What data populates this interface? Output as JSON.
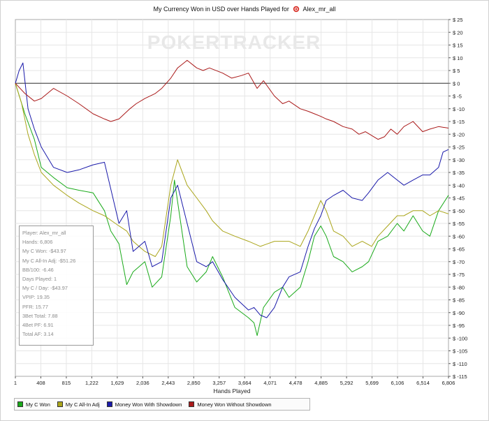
{
  "chart_data": {
    "type": "line",
    "title": "My Currency Won in USD over Hands Played for",
    "player_name": "Alex_mr_all",
    "watermark": "POKERTRACKER",
    "xlabel": "Hands Played",
    "ylabel": "",
    "xlim": [
      1,
      6806
    ],
    "ylim": [
      -115,
      25
    ],
    "x_ticks": [
      "1",
      "408",
      "815",
      "1,222",
      "1,629",
      "2,036",
      "2,443",
      "2,850",
      "3,257",
      "3,664",
      "4,071",
      "4,478",
      "4,885",
      "5,292",
      "5,699",
      "6,106",
      "6,514",
      "6,806"
    ],
    "y_ticks": [
      "$ 25",
      "$ 20",
      "$ 15",
      "$ 10",
      "$ 5",
      "$ 0",
      "$ -5",
      "$ -10",
      "$ -15",
      "$ -20",
      "$ -25",
      "$ -30",
      "$ -35",
      "$ -40",
      "$ -45",
      "$ -50",
      "$ -55",
      "$ -60",
      "$ -65",
      "$ -70",
      "$ -75",
      "$ -80",
      "$ -85",
      "$ -90",
      "$ -95",
      "$ -100",
      "$ -105",
      "$ -110",
      "$ -115"
    ],
    "grid": true,
    "legend_position": "bottom-left",
    "series": [
      {
        "name": "My C Won",
        "color": "#1aaa1a",
        "x": [
          1,
          150,
          300,
          408,
          600,
          815,
          1000,
          1222,
          1400,
          1500,
          1629,
          1750,
          1850,
          2036,
          2150,
          2300,
          2443,
          2500,
          2600,
          2700,
          2850,
          3000,
          3100,
          3257,
          3450,
          3664,
          3750,
          3800,
          3900,
          4071,
          4200,
          4300,
          4478,
          4600,
          4700,
          4800,
          4885,
          5000,
          5150,
          5292,
          5450,
          5550,
          5699,
          5850,
          6000,
          6106,
          6250,
          6400,
          6514,
          6650,
          6806
        ],
        "y": [
          0,
          -12,
          -22,
          -33,
          -37,
          -41,
          -42,
          -43,
          -50,
          -58,
          -63,
          -79,
          -74,
          -70,
          -80,
          -76,
          -52,
          -38,
          -55,
          -72,
          -78,
          -74,
          -68,
          -76,
          -88,
          -92,
          -94,
          -99,
          -88,
          -82,
          -80,
          -84,
          -80,
          -70,
          -60,
          -56,
          -60,
          -68,
          -70,
          -74,
          -72,
          -70,
          -62,
          -60,
          -55,
          -58,
          -52,
          -58,
          -60,
          -50,
          -43.97
        ]
      },
      {
        "name": "My C All-In Adj",
        "color": "#aaa51a",
        "x": [
          1,
          100,
          200,
          300,
          408,
          600,
          815,
          1000,
          1222,
          1400,
          1629,
          1750,
          1850,
          2036,
          2200,
          2300,
          2443,
          2550,
          2700,
          2850,
          3000,
          3100,
          3257,
          3450,
          3664,
          3850,
          4071,
          4300,
          4478,
          4600,
          4700,
          4800,
          4885,
          5000,
          5150,
          5292,
          5450,
          5600,
          5699,
          5850,
          6000,
          6106,
          6250,
          6400,
          6514,
          6650,
          6806
        ],
        "y": [
          0,
          -8,
          -20,
          -28,
          -35,
          -40,
          -44,
          -47,
          -50,
          -52,
          -56,
          -58,
          -62,
          -66,
          -68,
          -64,
          -40,
          -30,
          -40,
          -45,
          -50,
          -54,
          -58,
          -60,
          -62,
          -64,
          -62,
          -62,
          -64,
          -58,
          -52,
          -46,
          -50,
          -58,
          -60,
          -64,
          -62,
          -64,
          -60,
          -56,
          -52,
          -52,
          -50,
          -50,
          -52,
          -50,
          -51.26
        ]
      },
      {
        "name": "Money Won With Showdown",
        "color": "#1a1aaa",
        "x": [
          1,
          60,
          120,
          200,
          300,
          408,
          600,
          815,
          1000,
          1222,
          1400,
          1629,
          1750,
          1850,
          2036,
          2150,
          2300,
          2443,
          2550,
          2700,
          2850,
          3000,
          3100,
          3257,
          3450,
          3664,
          3750,
          3850,
          3950,
          4071,
          4200,
          4300,
          4478,
          4600,
          4700,
          4800,
          4885,
          5000,
          5150,
          5292,
          5450,
          5550,
          5699,
          5850,
          6000,
          6106,
          6250,
          6400,
          6514,
          6650,
          6720,
          6806
        ],
        "y": [
          0,
          5,
          8,
          -10,
          -18,
          -25,
          -33,
          -35,
          -34,
          -32,
          -31,
          -55,
          -50,
          -66,
          -62,
          -72,
          -70,
          -45,
          -40,
          -55,
          -70,
          -72,
          -70,
          -77,
          -84,
          -89,
          -88,
          -91,
          -92,
          -88,
          -80,
          -76,
          -74,
          -64,
          -57,
          -52,
          -46,
          -44,
          -42,
          -45,
          -46,
          -43,
          -38,
          -35,
          -38,
          -40,
          -38,
          -36,
          -36,
          -33,
          -27,
          -26
        ]
      },
      {
        "name": "Money Won Without Showdown",
        "color": "#aa1a1a",
        "x": [
          1,
          150,
          300,
          408,
          600,
          815,
          1000,
          1222,
          1400,
          1500,
          1629,
          1800,
          1900,
          2036,
          2200,
          2300,
          2443,
          2550,
          2650,
          2700,
          2850,
          2950,
          3050,
          3257,
          3400,
          3550,
          3664,
          3800,
          3900,
          4071,
          4200,
          4300,
          4478,
          4600,
          4700,
          4800,
          4885,
          5000,
          5150,
          5292,
          5400,
          5500,
          5699,
          5800,
          5900,
          6000,
          6106,
          6250,
          6400,
          6514,
          6650,
          6806
        ],
        "y": [
          0,
          -4,
          -7,
          -6,
          -2,
          -5,
          -8,
          -12,
          -14,
          -15,
          -14,
          -10,
          -8,
          -6,
          -4,
          -2,
          2,
          6,
          8,
          9,
          6,
          5,
          6,
          4,
          2,
          3,
          4,
          -2,
          1,
          -5,
          -8,
          -7,
          -10,
          -11,
          -12,
          -13,
          -14,
          -15,
          -17,
          -18,
          -20,
          -19,
          -22,
          -21,
          -18,
          -20,
          -17,
          -15,
          -19,
          -18,
          -17,
          -17.6
        ]
      }
    ]
  },
  "stats": [
    "Player: Alex_mr_all",
    "Hands: 6,806",
    "My C Won: -$43.97",
    "My C All-In Adj: -$51.26",
    "BB/100: -6.46",
    "Days Played: 1",
    "My C / Day: -$43.97",
    "VPIP: 19.35",
    "PFR: 15.77",
    "3Bet Total: 7.88",
    "4Bet PF: 6.91",
    "Total AF: 3.14"
  ],
  "legend": [
    {
      "label": "My C Won",
      "color": "#1aaa1a"
    },
    {
      "label": "My C All-In Adj",
      "color": "#aaa51a"
    },
    {
      "label": "Money Won With Showdown",
      "color": "#1a1aaa"
    },
    {
      "label": "Money Won Without Showdown",
      "color": "#aa1a1a"
    }
  ]
}
